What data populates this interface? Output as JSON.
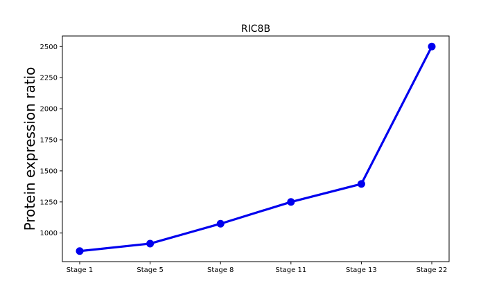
{
  "chart_data": {
    "type": "line",
    "title": "RIC8B",
    "xlabel": "",
    "ylabel": "Protein expression ratio",
    "categories": [
      "Stage 1",
      "Stage 5",
      "Stage 8",
      "Stage 11",
      "Stage 13",
      "Stage 22"
    ],
    "series": [
      {
        "values": [
          855,
          915,
          1075,
          1250,
          1395,
          2500
        ]
      }
    ],
    "ylim": [
      770,
      2585
    ],
    "yticks": [
      "1000",
      "1250",
      "1500",
      "1750",
      "2000",
      "2250",
      "2500"
    ],
    "grid": false,
    "line_color": "#0000ee",
    "marker": "circle"
  }
}
